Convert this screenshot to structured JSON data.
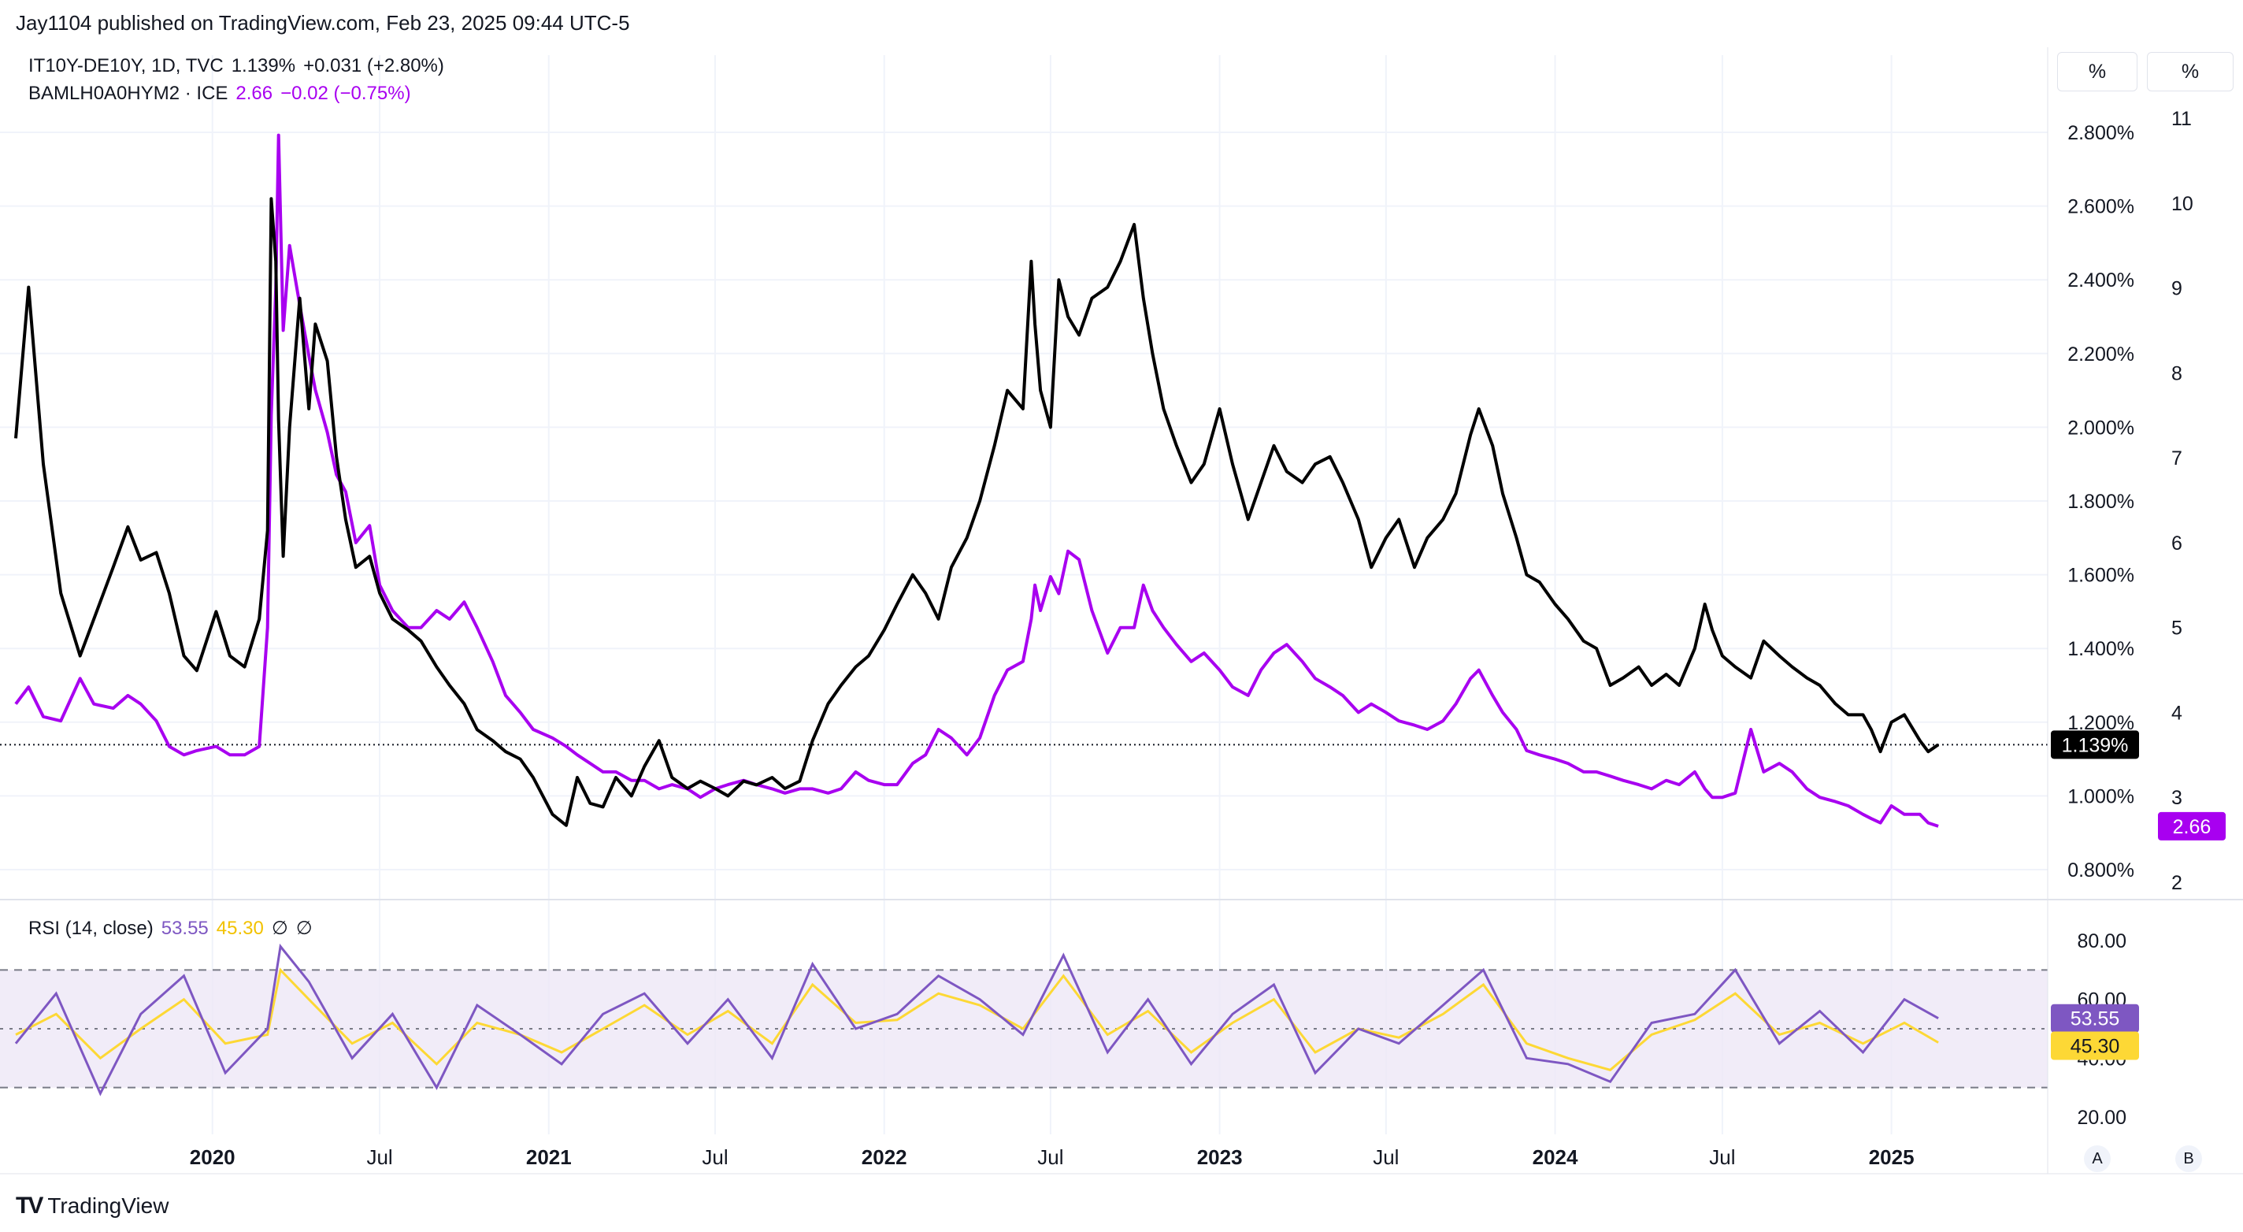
{
  "header": {
    "text": "Jay1104 published on TradingView.com, Feb 23, 2025 09:44 UTC-5"
  },
  "legend": {
    "main": {
      "symbol": "IT10Y-DE10Y, 1D, TVC",
      "value": "1.139%",
      "change": "+0.031 (+2.80%)"
    },
    "compare": {
      "symbol": "BAMLH0A0HYM2 · ICE",
      "value": "2.66",
      "change": "−0.02 (−0.75%)"
    }
  },
  "rsi_legend": {
    "label": "RSI (14, close)",
    "rsi": "53.55",
    "ma": "45.30",
    "extra1": "∅",
    "extra2": "∅"
  },
  "units": {
    "left": "%",
    "right": "%"
  },
  "buttons": {
    "a": "A",
    "b": "B"
  },
  "footer": {
    "logo": "TV",
    "brand": "TradingView"
  },
  "colors": {
    "main": "#000000",
    "compare": "#a800f0",
    "rsi": "#7e57c2",
    "rsi_ma": "#fdd835",
    "rsi_band": "#ede7f6"
  },
  "chart_data": {
    "type": "line",
    "x_ticks": [
      "2020",
      "Jul",
      "2021",
      "Jul",
      "2022",
      "Jul",
      "2023",
      "Jul",
      "2024",
      "Jul",
      "2025"
    ],
    "y_left_ticks": [
      "2.800%",
      "2.600%",
      "2.400%",
      "2.200%",
      "2.000%",
      "1.800%",
      "1.600%",
      "1.400%",
      "1.200%",
      "1.000%",
      "0.800%"
    ],
    "y_left_range": [
      0.8,
      2.8
    ],
    "y_right_ticks": [
      "11",
      "10",
      "9",
      "8",
      "7",
      "6",
      "5",
      "4",
      "3",
      "2"
    ],
    "y_right_range": [
      2,
      11
    ],
    "last_labels": {
      "main": "1.139%",
      "compare": "2.66"
    },
    "series": [
      {
        "name": "IT10Y-DE10Y",
        "axis": "left",
        "x": [
          "2019-06-01",
          "2019-06-15",
          "2019-07-01",
          "2019-07-20",
          "2019-08-10",
          "2019-08-25",
          "2019-09-15",
          "2019-10-01",
          "2019-10-15",
          "2019-11-01",
          "2019-11-15",
          "2019-12-01",
          "2019-12-15",
          "2020-01-05",
          "2020-01-20",
          "2020-02-05",
          "2020-02-21",
          "2020-03-01",
          "2020-03-05",
          "2020-03-10",
          "2020-03-13",
          "2020-03-18",
          "2020-03-25",
          "2020-04-05",
          "2020-04-15",
          "2020-04-22",
          "2020-05-05",
          "2020-05-15",
          "2020-05-25",
          "2020-06-05",
          "2020-06-20",
          "2020-07-01",
          "2020-07-15",
          "2020-08-01",
          "2020-08-15",
          "2020-09-01",
          "2020-09-15",
          "2020-10-01",
          "2020-10-15",
          "2020-11-01",
          "2020-11-15",
          "2020-12-01",
          "2020-12-15",
          "2021-01-05",
          "2021-01-20",
          "2021-02-01",
          "2021-02-15",
          "2021-03-01",
          "2021-03-15",
          "2021-04-01",
          "2021-04-15",
          "2021-05-01",
          "2021-05-15",
          "2021-06-01",
          "2021-06-15",
          "2021-07-01",
          "2021-07-15",
          "2021-08-01",
          "2021-08-15",
          "2021-09-01",
          "2021-09-15",
          "2021-10-01",
          "2021-10-15",
          "2021-11-01",
          "2021-11-15",
          "2021-12-01",
          "2021-12-15",
          "2022-01-01",
          "2022-01-15",
          "2022-02-01",
          "2022-02-15",
          "2022-03-01",
          "2022-03-15",
          "2022-04-01",
          "2022-04-15",
          "2022-05-01",
          "2022-05-15",
          "2022-06-01",
          "2022-06-10",
          "2022-06-14",
          "2022-06-20",
          "2022-07-01",
          "2022-07-10",
          "2022-07-20",
          "2022-08-01",
          "2022-08-15",
          "2022-09-01",
          "2022-09-15",
          "2022-09-30",
          "2022-10-10",
          "2022-10-20",
          "2022-11-01",
          "2022-11-15",
          "2022-12-01",
          "2022-12-15",
          "2023-01-01",
          "2023-01-15",
          "2023-02-01",
          "2023-02-15",
          "2023-03-01",
          "2023-03-15",
          "2023-04-01",
          "2023-04-15",
          "2023-05-01",
          "2023-05-15",
          "2023-06-01",
          "2023-06-15",
          "2023-07-01",
          "2023-07-15",
          "2023-08-01",
          "2023-08-15",
          "2023-09-01",
          "2023-09-15",
          "2023-10-01",
          "2023-10-10",
          "2023-10-25",
          "2023-11-05",
          "2023-11-20",
          "2023-12-01",
          "2023-12-15",
          "2024-01-01",
          "2024-01-15",
          "2024-02-01",
          "2024-02-15",
          "2024-03-01",
          "2024-03-15",
          "2024-04-01",
          "2024-04-15",
          "2024-05-01",
          "2024-05-15",
          "2024-06-01",
          "2024-06-12",
          "2024-06-20",
          "2024-07-01",
          "2024-07-15",
          "2024-08-01",
          "2024-08-15",
          "2024-09-01",
          "2024-09-15",
          "2024-10-01",
          "2024-10-15",
          "2024-11-01",
          "2024-11-15",
          "2024-12-01",
          "2024-12-10",
          "2024-12-20",
          "2025-01-01",
          "2025-01-15",
          "2025-02-01",
          "2025-02-10",
          "2025-02-21"
        ],
        "values": [
          1.97,
          2.38,
          1.9,
          1.55,
          1.38,
          1.48,
          1.62,
          1.73,
          1.64,
          1.66,
          1.55,
          1.38,
          1.34,
          1.5,
          1.38,
          1.35,
          1.48,
          1.72,
          2.62,
          2.45,
          2.02,
          1.65,
          2.0,
          2.35,
          2.05,
          2.28,
          2.18,
          1.92,
          1.75,
          1.62,
          1.65,
          1.55,
          1.48,
          1.45,
          1.42,
          1.35,
          1.3,
          1.25,
          1.18,
          1.15,
          1.12,
          1.1,
          1.05,
          0.95,
          0.92,
          1.05,
          0.98,
          0.97,
          1.05,
          1.0,
          1.08,
          1.15,
          1.05,
          1.02,
          1.04,
          1.02,
          1.0,
          1.04,
          1.03,
          1.05,
          1.02,
          1.04,
          1.15,
          1.25,
          1.3,
          1.35,
          1.38,
          1.45,
          1.52,
          1.6,
          1.55,
          1.48,
          1.62,
          1.7,
          1.8,
          1.95,
          2.1,
          2.05,
          2.45,
          2.28,
          2.1,
          2.0,
          2.4,
          2.3,
          2.25,
          2.35,
          2.38,
          2.45,
          2.55,
          2.35,
          2.2,
          2.05,
          1.95,
          1.85,
          1.9,
          2.05,
          1.9,
          1.75,
          1.85,
          1.95,
          1.88,
          1.85,
          1.9,
          1.92,
          1.85,
          1.75,
          1.62,
          1.7,
          1.75,
          1.62,
          1.7,
          1.75,
          1.82,
          1.98,
          2.05,
          1.95,
          1.82,
          1.7,
          1.6,
          1.58,
          1.52,
          1.48,
          1.42,
          1.4,
          1.3,
          1.32,
          1.35,
          1.3,
          1.33,
          1.3,
          1.4,
          1.52,
          1.45,
          1.38,
          1.35,
          1.32,
          1.42,
          1.38,
          1.35,
          1.32,
          1.3,
          1.25,
          1.22,
          1.22,
          1.18,
          1.12,
          1.2,
          1.22,
          1.15,
          1.12,
          1.139
        ]
      },
      {
        "name": "BAMLH0A0HYM2",
        "axis": "right",
        "x": [
          "2019-06-01",
          "2019-06-15",
          "2019-07-01",
          "2019-07-20",
          "2019-08-10",
          "2019-08-25",
          "2019-09-15",
          "2019-10-01",
          "2019-10-15",
          "2019-11-01",
          "2019-11-15",
          "2019-12-01",
          "2019-12-15",
          "2020-01-05",
          "2020-01-20",
          "2020-02-05",
          "2020-02-21",
          "2020-03-01",
          "2020-03-05",
          "2020-03-10",
          "2020-03-13",
          "2020-03-18",
          "2020-03-25",
          "2020-04-05",
          "2020-04-15",
          "2020-04-22",
          "2020-05-05",
          "2020-05-15",
          "2020-05-25",
          "2020-06-05",
          "2020-06-20",
          "2020-07-01",
          "2020-07-15",
          "2020-08-01",
          "2020-08-15",
          "2020-09-01",
          "2020-09-15",
          "2020-10-01",
          "2020-10-15",
          "2020-11-01",
          "2020-11-15",
          "2020-12-01",
          "2020-12-15",
          "2021-01-05",
          "2021-01-20",
          "2021-02-01",
          "2021-02-15",
          "2021-03-01",
          "2021-03-15",
          "2021-04-01",
          "2021-04-15",
          "2021-05-01",
          "2021-05-15",
          "2021-06-01",
          "2021-06-15",
          "2021-07-01",
          "2021-07-15",
          "2021-08-01",
          "2021-08-15",
          "2021-09-01",
          "2021-09-15",
          "2021-10-01",
          "2021-10-15",
          "2021-11-01",
          "2021-11-15",
          "2021-12-01",
          "2021-12-15",
          "2022-01-01",
          "2022-01-15",
          "2022-02-01",
          "2022-02-15",
          "2022-03-01",
          "2022-03-15",
          "2022-04-01",
          "2022-04-15",
          "2022-05-01",
          "2022-05-15",
          "2022-06-01",
          "2022-06-10",
          "2022-06-14",
          "2022-06-20",
          "2022-07-01",
          "2022-07-10",
          "2022-07-20",
          "2022-08-01",
          "2022-08-15",
          "2022-09-01",
          "2022-09-15",
          "2022-09-30",
          "2022-10-10",
          "2022-10-20",
          "2022-11-01",
          "2022-11-15",
          "2022-12-01",
          "2022-12-15",
          "2023-01-01",
          "2023-01-15",
          "2023-02-01",
          "2023-02-15",
          "2023-03-01",
          "2023-03-15",
          "2023-04-01",
          "2023-04-15",
          "2023-05-01",
          "2023-05-15",
          "2023-06-01",
          "2023-06-15",
          "2023-07-01",
          "2023-07-15",
          "2023-08-01",
          "2023-08-15",
          "2023-09-01",
          "2023-09-15",
          "2023-10-01",
          "2023-10-10",
          "2023-10-25",
          "2023-11-05",
          "2023-11-20",
          "2023-12-01",
          "2023-12-15",
          "2024-01-01",
          "2024-01-15",
          "2024-02-01",
          "2024-02-15",
          "2024-03-01",
          "2024-03-15",
          "2024-04-01",
          "2024-04-15",
          "2024-05-01",
          "2024-05-15",
          "2024-06-01",
          "2024-06-12",
          "2024-06-20",
          "2024-07-01",
          "2024-07-15",
          "2024-08-01",
          "2024-08-15",
          "2024-09-01",
          "2024-09-15",
          "2024-10-01",
          "2024-10-15",
          "2024-11-01",
          "2024-11-15",
          "2024-12-01",
          "2024-12-10",
          "2024-12-20",
          "2025-01-01",
          "2025-01-15",
          "2025-02-01",
          "2025-02-10",
          "2025-02-21"
        ],
        "values": [
          4.1,
          4.3,
          3.95,
          3.9,
          4.4,
          4.1,
          4.05,
          4.2,
          4.1,
          3.9,
          3.6,
          3.5,
          3.55,
          3.6,
          3.5,
          3.5,
          3.6,
          5.0,
          7.5,
          9.0,
          10.8,
          8.5,
          9.5,
          8.8,
          8.2,
          7.8,
          7.3,
          6.8,
          6.6,
          6.0,
          6.2,
          5.5,
          5.2,
          5.0,
          5.0,
          5.2,
          5.1,
          5.3,
          5.0,
          4.6,
          4.2,
          4.0,
          3.8,
          3.7,
          3.6,
          3.5,
          3.4,
          3.3,
          3.3,
          3.2,
          3.2,
          3.1,
          3.15,
          3.1,
          3.0,
          3.1,
          3.15,
          3.2,
          3.15,
          3.1,
          3.05,
          3.1,
          3.1,
          3.05,
          3.1,
          3.3,
          3.2,
          3.15,
          3.15,
          3.4,
          3.5,
          3.8,
          3.7,
          3.5,
          3.7,
          4.2,
          4.5,
          4.6,
          5.1,
          5.5,
          5.2,
          5.6,
          5.4,
          5.9,
          5.8,
          5.2,
          4.7,
          5.0,
          5.0,
          5.5,
          5.2,
          5.0,
          4.8,
          4.6,
          4.7,
          4.5,
          4.3,
          4.2,
          4.5,
          4.7,
          4.8,
          4.6,
          4.4,
          4.3,
          4.2,
          4.0,
          4.1,
          4.0,
          3.9,
          3.85,
          3.8,
          3.9,
          4.1,
          4.4,
          4.5,
          4.2,
          4.0,
          3.8,
          3.55,
          3.5,
          3.45,
          3.4,
          3.3,
          3.3,
          3.25,
          3.2,
          3.15,
          3.1,
          3.2,
          3.15,
          3.3,
          3.1,
          3.0,
          3.0,
          3.05,
          3.8,
          3.3,
          3.4,
          3.3,
          3.1,
          3.0,
          2.95,
          2.9,
          2.8,
          2.75,
          2.7,
          2.9,
          2.8,
          2.8,
          2.7,
          2.66
        ]
      }
    ],
    "rsi": {
      "ylim": [
        0,
        100
      ],
      "ticks": [
        "80.00",
        "60.00",
        "40.00",
        "20.00"
      ],
      "bands": [
        70,
        50,
        30
      ],
      "last_values": {
        "rsi": "53.55",
        "ma": "45.30"
      },
      "x": [
        "2019-06-01",
        "2019-07-15",
        "2019-09-01",
        "2019-10-15",
        "2019-12-01",
        "2020-01-15",
        "2020-03-01",
        "2020-03-15",
        "2020-04-15",
        "2020-06-01",
        "2020-07-15",
        "2020-09-01",
        "2020-10-15",
        "2020-12-01",
        "2021-01-15",
        "2021-03-01",
        "2021-04-15",
        "2021-06-01",
        "2021-07-15",
        "2021-09-01",
        "2021-10-15",
        "2021-12-01",
        "2022-01-15",
        "2022-03-01",
        "2022-04-15",
        "2022-06-01",
        "2022-07-15",
        "2022-09-01",
        "2022-10-15",
        "2022-12-01",
        "2023-01-15",
        "2023-03-01",
        "2023-04-15",
        "2023-06-01",
        "2023-07-15",
        "2023-09-01",
        "2023-10-15",
        "2023-12-01",
        "2024-01-15",
        "2024-03-01",
        "2024-04-15",
        "2024-06-01",
        "2024-07-15",
        "2024-09-01",
        "2024-10-15",
        "2024-12-01",
        "2025-01-15",
        "2025-02-21"
      ],
      "rsi_values": [
        45,
        62,
        28,
        55,
        68,
        35,
        50,
        78,
        66,
        40,
        55,
        30,
        58,
        48,
        38,
        55,
        62,
        45,
        60,
        40,
        72,
        50,
        55,
        68,
        60,
        48,
        75,
        42,
        60,
        38,
        55,
        65,
        35,
        50,
        45,
        58,
        70,
        40,
        38,
        32,
        52,
        55,
        70,
        45,
        56,
        42,
        60,
        53.55
      ],
      "ma_values": [
        48,
        55,
        40,
        50,
        60,
        45,
        48,
        70,
        60,
        45,
        52,
        38,
        52,
        48,
        42,
        50,
        58,
        48,
        56,
        45,
        65,
        52,
        53,
        62,
        58,
        50,
        68,
        48,
        56,
        42,
        52,
        60,
        42,
        50,
        47,
        55,
        65,
        45,
        40,
        36,
        48,
        53,
        62,
        48,
        52,
        45,
        52,
        45.3
      ]
    }
  }
}
